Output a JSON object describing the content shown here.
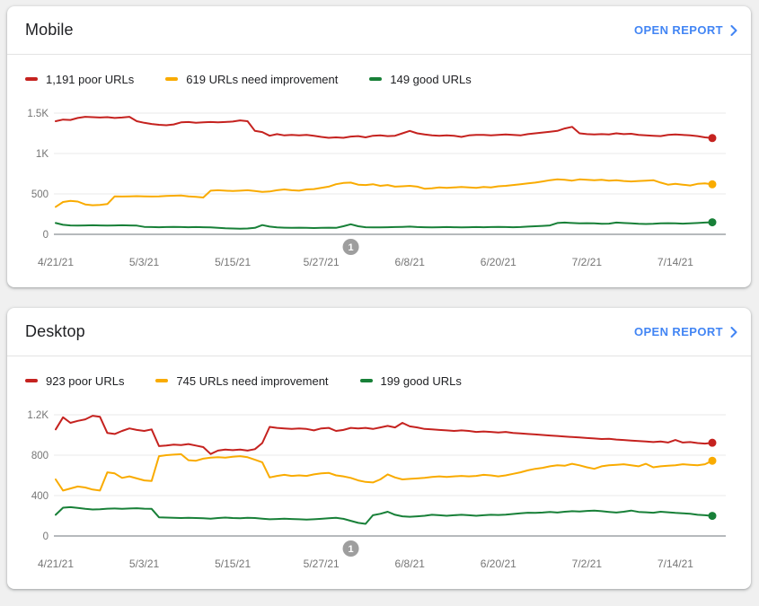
{
  "page": {
    "background_color": "#f0f0f0",
    "card_color": "#ffffff",
    "link_color": "#4285f4",
    "axis_label_color": "#757575",
    "annotation_color": "#9e9e9e"
  },
  "cards": [
    {
      "title": "Mobile",
      "open_report_label": "OPEN REPORT",
      "legend": [
        {
          "label": "1,191 poor URLs"
        },
        {
          "label": "619 URLs need improvement"
        },
        {
          "label": "149 good URLs"
        }
      ]
    },
    {
      "title": "Desktop",
      "open_report_label": "OPEN REPORT",
      "legend": [
        {
          "label": "923 poor URLs"
        },
        {
          "label": "745 URLs need improvement"
        },
        {
          "label": "199 good URLs"
        }
      ]
    }
  ],
  "chart_data": [
    {
      "type": "line",
      "title": "Mobile",
      "x_unit": "daily dates 4/21/21 through 7/19/21",
      "x_tick_labels": [
        "4/21/21",
        "5/3/21",
        "5/15/21",
        "5/27/21",
        "6/8/21",
        "6/20/21",
        "7/2/21",
        "7/14/21"
      ],
      "x_tick_indices": [
        0,
        12,
        24,
        36,
        48,
        60,
        72,
        84
      ],
      "ylim": [
        0,
        1500
      ],
      "y_ticks": [
        {
          "value": 0,
          "label": "0"
        },
        {
          "value": 500,
          "label": "500"
        },
        {
          "value": 1000,
          "label": "1K"
        },
        {
          "value": 1500,
          "label": "1.5K"
        }
      ],
      "grid": true,
      "legend_position": "top",
      "annotation": {
        "label": "1",
        "index": 40
      },
      "series": [
        {
          "name": "poor URLs",
          "color": "#c5221f",
          "current": 1191,
          "values": [
            1400,
            1420,
            1415,
            1440,
            1455,
            1450,
            1445,
            1450,
            1440,
            1445,
            1455,
            1400,
            1380,
            1365,
            1355,
            1350,
            1360,
            1385,
            1390,
            1380,
            1385,
            1390,
            1385,
            1390,
            1395,
            1410,
            1400,
            1280,
            1265,
            1220,
            1240,
            1225,
            1230,
            1225,
            1230,
            1220,
            1205,
            1195,
            1200,
            1195,
            1210,
            1215,
            1200,
            1220,
            1225,
            1215,
            1220,
            1250,
            1280,
            1250,
            1235,
            1225,
            1220,
            1225,
            1220,
            1205,
            1225,
            1230,
            1230,
            1225,
            1230,
            1235,
            1230,
            1225,
            1240,
            1250,
            1260,
            1270,
            1280,
            1310,
            1330,
            1250,
            1240,
            1235,
            1240,
            1235,
            1250,
            1240,
            1245,
            1230,
            1225,
            1220,
            1215,
            1230,
            1235,
            1230,
            1225,
            1215,
            1200,
            1191
          ]
        },
        {
          "name": "URLs need improvement",
          "color": "#f9ab00",
          "current": 619,
          "values": [
            340,
            400,
            415,
            405,
            370,
            360,
            365,
            375,
            470,
            468,
            470,
            472,
            470,
            468,
            470,
            475,
            478,
            480,
            470,
            465,
            455,
            540,
            545,
            540,
            535,
            540,
            545,
            535,
            525,
            530,
            545,
            555,
            545,
            540,
            555,
            560,
            575,
            590,
            620,
            635,
            640,
            615,
            610,
            620,
            600,
            610,
            590,
            595,
            600,
            590,
            565,
            570,
            580,
            575,
            580,
            585,
            580,
            575,
            585,
            580,
            595,
            600,
            610,
            620,
            630,
            640,
            655,
            670,
            680,
            675,
            665,
            680,
            675,
            670,
            675,
            665,
            670,
            660,
            655,
            660,
            665,
            670,
            640,
            615,
            625,
            615,
            605,
            625,
            630,
            619
          ]
        },
        {
          "name": "good URLs",
          "color": "#188038",
          "current": 149,
          "values": [
            140,
            118,
            110,
            108,
            110,
            112,
            110,
            108,
            110,
            112,
            110,
            108,
            92,
            90,
            88,
            90,
            92,
            90,
            88,
            90,
            88,
            85,
            80,
            75,
            72,
            70,
            72,
            80,
            115,
            95,
            85,
            82,
            80,
            82,
            80,
            78,
            80,
            82,
            80,
            100,
            125,
            100,
            88,
            85,
            86,
            88,
            90,
            92,
            95,
            90,
            88,
            86,
            88,
            90,
            88,
            86,
            88,
            90,
            88,
            90,
            92,
            90,
            88,
            90,
            95,
            100,
            105,
            110,
            140,
            145,
            140,
            135,
            138,
            135,
            130,
            132,
            145,
            140,
            135,
            130,
            128,
            130,
            135,
            138,
            135,
            132,
            135,
            140,
            145,
            149
          ]
        }
      ]
    },
    {
      "type": "line",
      "title": "Desktop",
      "x_unit": "daily dates 4/21/21 through 7/19/21",
      "x_tick_labels": [
        "4/21/21",
        "5/3/21",
        "5/15/21",
        "5/27/21",
        "6/8/21",
        "6/20/21",
        "7/2/21",
        "7/14/21"
      ],
      "x_tick_indices": [
        0,
        12,
        24,
        36,
        48,
        60,
        72,
        84
      ],
      "ylim": [
        0,
        1200
      ],
      "y_ticks": [
        {
          "value": 0,
          "label": "0"
        },
        {
          "value": 400,
          "label": "400"
        },
        {
          "value": 800,
          "label": "800"
        },
        {
          "value": 1200,
          "label": "1.2K"
        }
      ],
      "grid": true,
      "legend_position": "top",
      "annotation": {
        "label": "1",
        "index": 40
      },
      "series": [
        {
          "name": "poor URLs",
          "color": "#c5221f",
          "current": 923,
          "values": [
            1055,
            1175,
            1120,
            1140,
            1155,
            1190,
            1180,
            1020,
            1010,
            1040,
            1065,
            1050,
            1040,
            1055,
            890,
            895,
            905,
            900,
            910,
            895,
            880,
            812,
            845,
            855,
            850,
            855,
            845,
            860,
            920,
            1080,
            1070,
            1065,
            1060,
            1065,
            1060,
            1045,
            1065,
            1070,
            1040,
            1050,
            1070,
            1065,
            1070,
            1060,
            1075,
            1090,
            1075,
            1120,
            1085,
            1075,
            1060,
            1055,
            1050,
            1045,
            1040,
            1045,
            1040,
            1030,
            1035,
            1030,
            1025,
            1030,
            1020,
            1015,
            1010,
            1005,
            1000,
            995,
            990,
            985,
            980,
            975,
            970,
            965,
            960,
            962,
            955,
            950,
            945,
            940,
            935,
            930,
            935,
            925,
            950,
            925,
            930,
            920,
            915,
            923
          ]
        },
        {
          "name": "URLs need improvement",
          "color": "#f9ab00",
          "current": 745,
          "values": [
            560,
            450,
            470,
            490,
            480,
            460,
            450,
            630,
            620,
            575,
            590,
            570,
            550,
            545,
            790,
            800,
            805,
            810,
            750,
            745,
            765,
            775,
            780,
            775,
            785,
            790,
            780,
            755,
            730,
            580,
            595,
            605,
            595,
            600,
            595,
            610,
            620,
            625,
            600,
            590,
            575,
            550,
            535,
            530,
            560,
            610,
            580,
            560,
            565,
            570,
            575,
            585,
            590,
            585,
            590,
            595,
            590,
            595,
            605,
            600,
            590,
            600,
            615,
            630,
            650,
            665,
            675,
            690,
            700,
            695,
            715,
            700,
            680,
            665,
            690,
            700,
            705,
            710,
            700,
            690,
            715,
            680,
            690,
            695,
            700,
            710,
            705,
            700,
            710,
            745
          ]
        },
        {
          "name": "good URLs",
          "color": "#188038",
          "current": 199,
          "values": [
            210,
            280,
            285,
            278,
            268,
            262,
            265,
            270,
            272,
            268,
            272,
            275,
            270,
            268,
            185,
            182,
            180,
            178,
            180,
            178,
            175,
            172,
            178,
            182,
            178,
            175,
            180,
            178,
            172,
            165,
            168,
            172,
            168,
            165,
            162,
            165,
            170,
            175,
            180,
            170,
            150,
            130,
            120,
            205,
            220,
            240,
            210,
            195,
            190,
            195,
            200,
            210,
            205,
            200,
            205,
            210,
            205,
            200,
            205,
            210,
            208,
            212,
            218,
            225,
            230,
            228,
            232,
            238,
            232,
            240,
            245,
            242,
            248,
            252,
            245,
            238,
            232,
            240,
            252,
            238,
            235,
            230,
            240,
            235,
            228,
            225,
            220,
            210,
            205,
            199
          ]
        }
      ]
    }
  ]
}
